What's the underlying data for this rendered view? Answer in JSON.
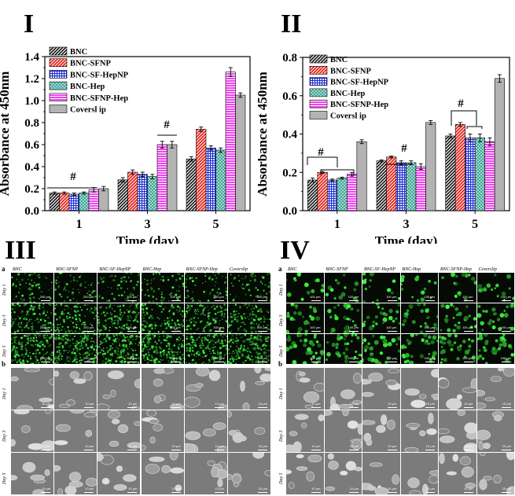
{
  "panels": {
    "I": "I",
    "II": "II",
    "III": "III",
    "IV": "IV"
  },
  "colors": {
    "BNC": "#1a1a1a",
    "BNC-SFNP": "#e8221b",
    "BNC-SF-HepNP": "#1f2fd6",
    "BNC-Hep": "#3fb0a0",
    "BNC-SFNP-Hep": "#ee22ee",
    "Coverslip": "#b3b3b3"
  },
  "chart_data": [
    {
      "type": "bar",
      "panel": "I",
      "categories": [
        "1",
        "3",
        "5"
      ],
      "xlabel": "Time (day)",
      "ylabel": "Absorbance at 450nm",
      "ylim": [
        0.0,
        1.4
      ],
      "yticks": [
        "0.0",
        "0.2",
        "0.4",
        "0.6",
        "0.8",
        "1.0",
        "1.2",
        "1.4"
      ],
      "legend_position": "top-left",
      "series": [
        {
          "name": "BNC",
          "values": [
            0.16,
            0.28,
            0.47
          ],
          "errors": [
            0.01,
            0.02,
            0.02
          ]
        },
        {
          "name": "BNC-SFNP",
          "values": [
            0.16,
            0.35,
            0.74
          ],
          "errors": [
            0.01,
            0.02,
            0.02
          ]
        },
        {
          "name": "BNC-SF-HepNP",
          "values": [
            0.15,
            0.33,
            0.57
          ],
          "errors": [
            0.01,
            0.02,
            0.02
          ]
        },
        {
          "name": "BNC-Hep",
          "values": [
            0.16,
            0.31,
            0.55
          ],
          "errors": [
            0.01,
            0.02,
            0.02
          ]
        },
        {
          "name": "BNC-SFNP-Hep",
          "values": [
            0.19,
            0.6,
            1.26
          ],
          "errors": [
            0.02,
            0.03,
            0.04
          ]
        },
        {
          "name": "Coversl ip",
          "values": [
            0.2,
            0.6,
            1.05
          ],
          "errors": [
            0.02,
            0.03,
            0.02
          ]
        }
      ],
      "annotations": [
        "#",
        "#"
      ]
    },
    {
      "type": "bar",
      "panel": "II",
      "categories": [
        "1",
        "3",
        "5"
      ],
      "xlabel": "Time (day)",
      "ylabel": "Absorbance at 450nm",
      "ylim": [
        0.0,
        0.8
      ],
      "yticks": [
        "0.0",
        "0.2",
        "0.4",
        "0.6",
        "0.8"
      ],
      "legend_position": "top-left",
      "series": [
        {
          "name": "BNC",
          "values": [
            0.16,
            0.26,
            0.39
          ],
          "errors": [
            0.01,
            0.005,
            0.01
          ]
        },
        {
          "name": "BNC-SFNP",
          "values": [
            0.2,
            0.28,
            0.45
          ],
          "errors": [
            0.005,
            0.005,
            0.01
          ]
        },
        {
          "name": "BNC-SF-HepNP",
          "values": [
            0.16,
            0.25,
            0.38
          ],
          "errors": [
            0.005,
            0.01,
            0.02
          ]
        },
        {
          "name": "BNC-Hep",
          "values": [
            0.17,
            0.25,
            0.38
          ],
          "errors": [
            0.005,
            0.01,
            0.02
          ]
        },
        {
          "name": "BNC-SFNP-Hep",
          "values": [
            0.19,
            0.23,
            0.36
          ],
          "errors": [
            0.01,
            0.015,
            0.02
          ]
        },
        {
          "name": "Coversl ip",
          "values": [
            0.36,
            0.46,
            0.69
          ],
          "errors": [
            0.01,
            0.01,
            0.02
          ]
        }
      ],
      "annotations": [
        "#",
        "#",
        "#"
      ]
    }
  ],
  "imaging": {
    "III": {
      "a_label": "a",
      "b_label": "b",
      "headers": [
        "BNC",
        "BNC-SFNP",
        "BNC-SF-HepNP",
        "BNC-Hep",
        "BNC-SFNP-Hep",
        "Coverslip"
      ],
      "rows": [
        "Day 1",
        "Day 3",
        "Day 5"
      ],
      "scale_a": "200 μm",
      "scale_b": "10 μm"
    },
    "IV": {
      "a_label": "a",
      "b_label": "b",
      "headers": [
        "BNC",
        "BNC-SFNP",
        "BNC-SF-HepNP",
        "BNC-Hep",
        "BNC-SFNP-Hep",
        "Coverslip"
      ],
      "rows": [
        "Day 1",
        "Day 3",
        "Day 5"
      ],
      "scale_a": "100 μm",
      "scale_b": "10 μm"
    }
  }
}
